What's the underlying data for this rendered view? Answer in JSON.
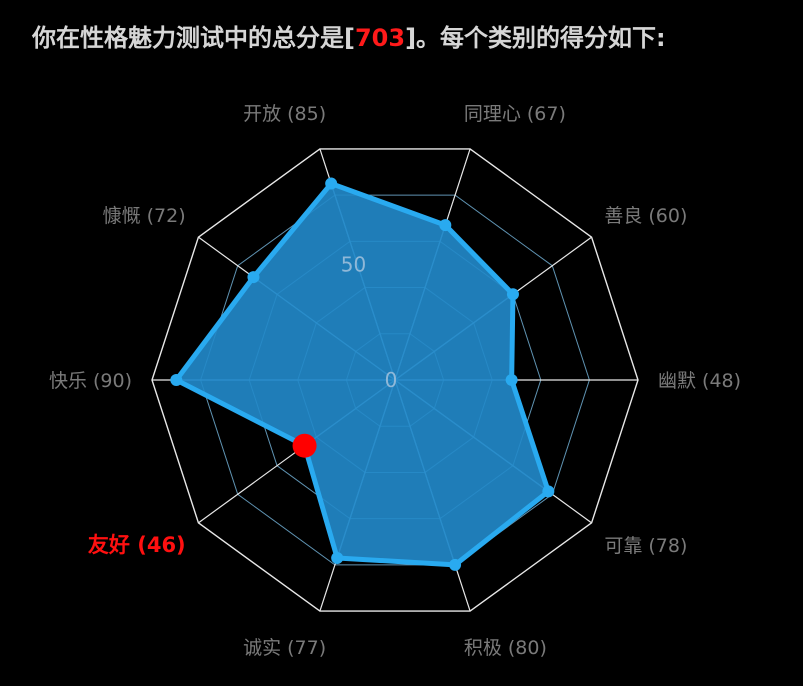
{
  "header": {
    "prefix": "你在性格魅力测试中的总分是[",
    "total_score": "703",
    "suffix": "]。每个类别的得分如下:"
  },
  "colors": {
    "background": "#000000",
    "grid_line": "#e8e8e8",
    "spoke_line": "#7fc4ee",
    "area_fill": "#2288c8",
    "series_line": "#29aaf0",
    "highlight": "#ff0000",
    "label": "#7a7a7a"
  },
  "chart_data": {
    "type": "radar",
    "title": "",
    "max": 100,
    "levels": 5,
    "tick_labels": [
      {
        "value": 0,
        "label": "0"
      },
      {
        "value": 50,
        "label": "50"
      }
    ],
    "highlight_index": 7,
    "categories": [
      {
        "name": "开放",
        "label": "开放 (85)",
        "value": 85
      },
      {
        "name": "同理心",
        "label": "同理心 (67)",
        "value": 67
      },
      {
        "name": "善良",
        "label": "善良 (60)",
        "value": 60
      },
      {
        "name": "幽默",
        "label": "幽默 (48)",
        "value": 48
      },
      {
        "name": "可靠",
        "label": "可靠 (78)",
        "value": 78
      },
      {
        "name": "积极",
        "label": "积极 (80)",
        "value": 80
      },
      {
        "name": "诚实",
        "label": "诚实 (77)",
        "value": 77
      },
      {
        "name": "友好",
        "label": "友好 (46)",
        "value": 46
      },
      {
        "name": "快乐",
        "label": "快乐 (90)",
        "value": 90
      },
      {
        "name": "慷慨",
        "label": "慷慨 (72)",
        "value": 72
      }
    ]
  }
}
